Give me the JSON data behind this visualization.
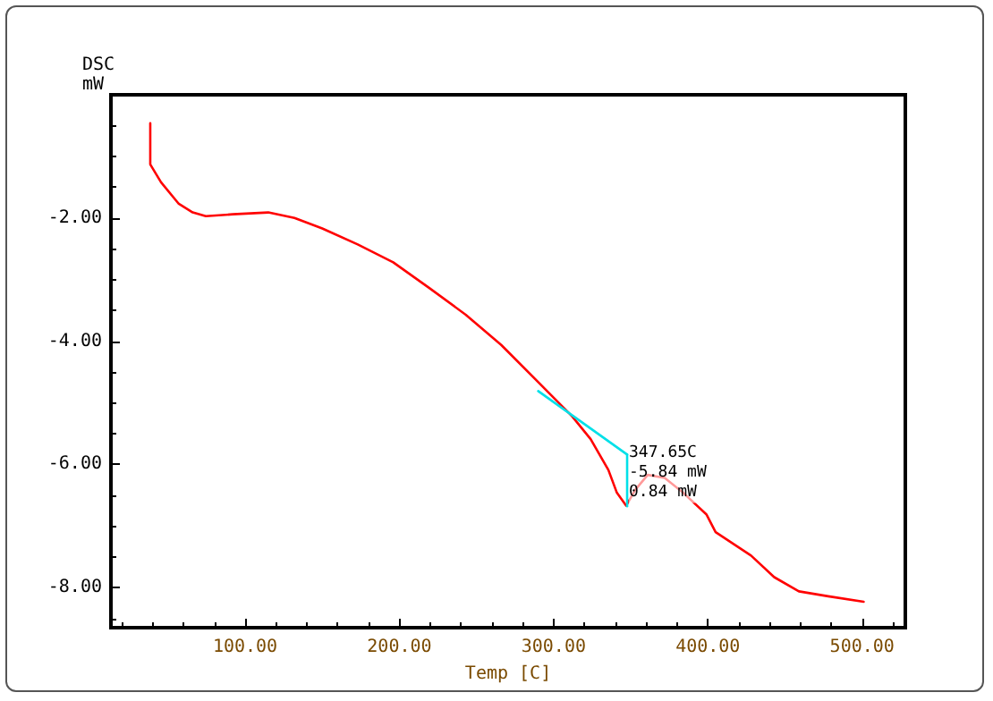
{
  "chart_data": {
    "type": "line",
    "xlabel": "Temp [C]",
    "ylabel": "DSC\nmW",
    "xlim": [
      13,
      528
    ],
    "ylim": [
      -8.65,
      0
    ],
    "xticks": [
      {
        "value": 100,
        "label": "100.00"
      },
      {
        "value": 200,
        "label": "200.00"
      },
      {
        "value": 300,
        "label": "300.00"
      },
      {
        "value": 400,
        "label": "400.00"
      },
      {
        "value": 500,
        "label": "500.00"
      }
    ],
    "yticks": [
      {
        "value": -8,
        "label": "-8.00"
      },
      {
        "value": -6,
        "label": "-6.00"
      },
      {
        "value": -4,
        "label": "-4.00"
      },
      {
        "value": -2,
        "label": "-2.00"
      }
    ],
    "grid": false,
    "marker": "none",
    "line_style": "solid",
    "series": [
      {
        "color": "#ff0000",
        "x": [
          38.5,
          38.5,
          45.5,
          57,
          66,
          74.5,
          92,
          115,
          132,
          150,
          173,
          196,
          219,
          243,
          266,
          289,
          312,
          324,
          335.5,
          341,
          347,
          353,
          361,
          372,
          384,
          399,
          405,
          428,
          443,
          459,
          478,
          501
        ],
        "values": [
          -0.46,
          -1.13,
          -1.42,
          -1.77,
          -1.91,
          -1.97,
          -1.94,
          -1.91,
          -2.0,
          -2.17,
          -2.43,
          -2.72,
          -3.13,
          -3.57,
          -4.06,
          -4.64,
          -5.22,
          -5.59,
          -6.09,
          -6.46,
          -6.67,
          -6.41,
          -6.17,
          -6.22,
          -6.46,
          -6.81,
          -7.1,
          -7.48,
          -7.83,
          -8.06,
          -8.14,
          -8.23
        ]
      },
      {
        "color": "#00e0e8",
        "x": [
          290,
          347.65
        ],
        "values": [
          -4.81,
          -5.84
        ]
      },
      {
        "color": "#00e0e8",
        "x": [
          347.65,
          347.65
        ],
        "values": [
          -5.84,
          -6.68
        ]
      }
    ],
    "annotations": [
      {
        "text": "347.65C\n-5.84 mW\n0.84 mW",
        "x": 347.65,
        "y": -5.84
      }
    ]
  }
}
